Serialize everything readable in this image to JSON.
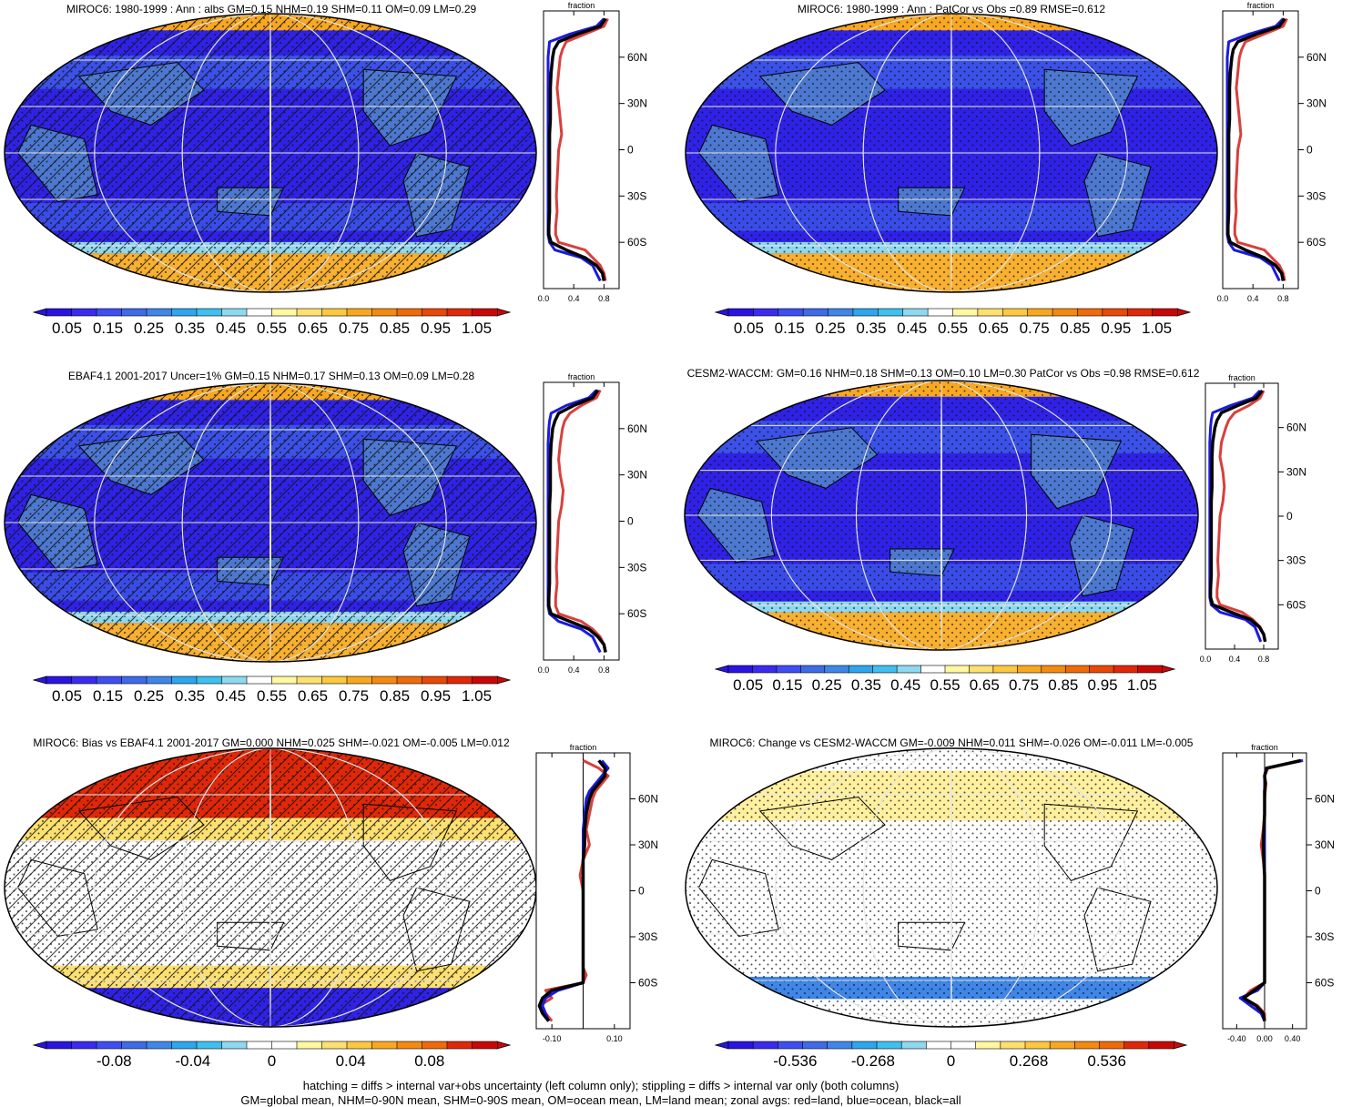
{
  "footer": {
    "line1": "hatching = diffs > internal var+obs uncertainty (left column only); stippling = diffs > internal var only (both columns)",
    "line2": "GM=global mean, NHM=0-90N mean, SHM=0-90S mean, OM=ocean mean, LM=land mean; zonal avgs: red=land, blue=ocean, black=all"
  },
  "colors": {
    "abs_scale": [
      "#2a14e0",
      "#3b2bee",
      "#3f4ef0",
      "#3f6ae8",
      "#3f86e8",
      "#2ea6ee",
      "#3fc0ee",
      "#8ed8f0",
      "#ffffff",
      "#fff8a0",
      "#fde070",
      "#fcc840",
      "#f8a820",
      "#f48a10",
      "#f06a0a",
      "#e84808",
      "#e02808",
      "#c80808"
    ],
    "diff_scale": [
      "#2a14e0",
      "#3b2bee",
      "#3f4ef0",
      "#3f6ae8",
      "#3f86e8",
      "#2ea6ee",
      "#3fc0ee",
      "#8ed8f0",
      "#ffffff",
      "#ffffff",
      "#fff8a0",
      "#fde070",
      "#fcc840",
      "#f8a820",
      "#f48a10",
      "#f06a0a",
      "#e02808",
      "#c80808"
    ],
    "land": "#d8403c",
    "ocean": "#1a1ae0",
    "all": "#000000"
  },
  "panels": [
    {
      "id": "miroc6-mean",
      "title": "MIROC6: 1980-1999 : Ann : albs GM=0.15 NHM=0.19 SHM=0.11 OM=0.09 LM=0.29",
      "kind": "abs",
      "hatched": true,
      "colorbar_labels": [
        "0.05",
        "0.15",
        "0.25",
        "0.35",
        "0.45",
        "0.55",
        "0.65",
        "0.75",
        "0.85",
        "0.95",
        "1.05"
      ],
      "zonal_xticks": [
        "0.0",
        "0.4",
        "0.8"
      ],
      "zonal_ylabels": [
        "60N",
        "30N",
        "0",
        "30S",
        "60S"
      ],
      "zonal_xlabel": "fraction"
    },
    {
      "id": "miroc6-patcor",
      "title": "MIROC6: 1980-1999 : Ann : PatCor vs Obs =0.89 RMSE=0.612",
      "kind": "abs",
      "hatched": false,
      "colorbar_labels": [
        "0.05",
        "0.15",
        "0.25",
        "0.35",
        "0.45",
        "0.55",
        "0.65",
        "0.75",
        "0.85",
        "0.95",
        "1.05"
      ],
      "zonal_xticks": [
        "0.0",
        "0.4",
        "0.8"
      ],
      "zonal_ylabels": [
        "60N",
        "30N",
        "0",
        "30S",
        "60S"
      ],
      "zonal_xlabel": "fraction"
    },
    {
      "id": "ebaf-obs",
      "title": "EBAF4.1 2001-2017 Uncer=1% GM=0.15 NHM=0.17 SHM=0.13 OM=0.09 LM=0.28",
      "kind": "abs",
      "hatched": true,
      "colorbar_labels": [
        "0.05",
        "0.15",
        "0.25",
        "0.35",
        "0.45",
        "0.55",
        "0.65",
        "0.75",
        "0.85",
        "0.95",
        "1.05"
      ],
      "zonal_xticks": [
        "0.0",
        "0.4",
        "0.8"
      ],
      "zonal_ylabels": [
        "60N",
        "30N",
        "0",
        "30S",
        "60S"
      ],
      "zonal_xlabel": "fraction"
    },
    {
      "id": "cesm2-waccm",
      "title": "CESM2-WACCM: GM=0.16 NHM=0.18 SHM=0.13 OM=0.10 LM=0.30 PatCor vs Obs =0.98 RMSE=0.612",
      "kind": "abs",
      "hatched": false,
      "colorbar_labels": [
        "0.05",
        "0.15",
        "0.25",
        "0.35",
        "0.45",
        "0.55",
        "0.65",
        "0.75",
        "0.85",
        "0.95",
        "1.05"
      ],
      "zonal_xticks": [
        "0.0",
        "0.4",
        "0.8"
      ],
      "zonal_ylabels": [
        "60N",
        "30N",
        "0",
        "30S",
        "60S"
      ],
      "zonal_xlabel": "fraction"
    },
    {
      "id": "miroc6-bias",
      "title": "MIROC6: Bias vs EBAF4.1 2001-2017 GM=0.000 NHM=0.025 SHM=-0.021 OM=-0.005 LM=0.012",
      "kind": "diff",
      "hatched": true,
      "colorbar_labels": [
        "-0.08",
        "-0.04",
        "0",
        "0.04",
        "0.08"
      ],
      "zonal_xticks": [
        "-0.10",
        "0.10"
      ],
      "zonal_ylabels": [
        "60N",
        "30N",
        "0",
        "30S",
        "60S"
      ],
      "zonal_xlabel": "fraction"
    },
    {
      "id": "miroc6-change",
      "title": "MIROC6: Change vs CESM2-WACCM GM=-0.009 NHM=0.011 SHM=-0.026 OM=-0.011 LM=-0.005",
      "kind": "diff",
      "hatched": false,
      "colorbar_labels": [
        "-0.536",
        "-0.268",
        "0",
        "0.268",
        "0.536"
      ],
      "zonal_xticks": [
        "-0.40",
        "0.00",
        "0.40"
      ],
      "zonal_ylabels": [
        "60N",
        "30N",
        "0",
        "30S",
        "60S"
      ],
      "zonal_xlabel": "fraction"
    }
  ],
  "chart_data": [
    {
      "type": "line",
      "panel": "miroc6-mean",
      "xlabel": "fraction",
      "xlim": [
        0,
        1.0
      ],
      "ylim": [
        -90,
        90
      ],
      "y": [
        85,
        80,
        75,
        70,
        65,
        60,
        50,
        40,
        30,
        20,
        10,
        0,
        -10,
        -20,
        -30,
        -40,
        -50,
        -55,
        -60,
        -65,
        -70,
        -75,
        -80,
        -85
      ],
      "series": [
        {
          "name": "land",
          "values": [
            0.85,
            0.8,
            0.55,
            0.3,
            0.25,
            0.22,
            0.2,
            0.18,
            0.2,
            0.22,
            0.24,
            0.2,
            0.19,
            0.18,
            0.17,
            0.18,
            0.16,
            0.16,
            0.2,
            0.55,
            0.65,
            0.75,
            0.8,
            0.82
          ]
        },
        {
          "name": "ocean",
          "values": [
            0.8,
            0.7,
            0.35,
            0.08,
            0.07,
            0.06,
            0.06,
            0.06,
            0.06,
            0.06,
            0.06,
            0.06,
            0.06,
            0.06,
            0.06,
            0.06,
            0.06,
            0.06,
            0.08,
            0.15,
            0.5,
            0.65,
            0.7,
            0.75
          ]
        },
        {
          "name": "all",
          "values": [
            0.82,
            0.75,
            0.45,
            0.2,
            0.14,
            0.12,
            0.1,
            0.09,
            0.09,
            0.09,
            0.08,
            0.08,
            0.08,
            0.08,
            0.08,
            0.08,
            0.07,
            0.07,
            0.1,
            0.3,
            0.55,
            0.7,
            0.78,
            0.8
          ]
        }
      ]
    },
    {
      "type": "line",
      "panel": "miroc6-patcor",
      "xlabel": "fraction",
      "xlim": [
        0,
        1.0
      ],
      "ylim": [
        -90,
        90
      ],
      "y": [
        85,
        80,
        75,
        70,
        65,
        60,
        50,
        40,
        30,
        20,
        10,
        0,
        -10,
        -20,
        -30,
        -40,
        -50,
        -55,
        -60,
        -65,
        -70,
        -75,
        -80,
        -85
      ],
      "series": [
        {
          "name": "land",
          "values": [
            0.85,
            0.8,
            0.55,
            0.3,
            0.25,
            0.22,
            0.2,
            0.18,
            0.2,
            0.22,
            0.24,
            0.2,
            0.19,
            0.18,
            0.17,
            0.18,
            0.16,
            0.16,
            0.2,
            0.55,
            0.65,
            0.75,
            0.8,
            0.82
          ]
        },
        {
          "name": "ocean",
          "values": [
            0.8,
            0.7,
            0.35,
            0.08,
            0.07,
            0.06,
            0.06,
            0.06,
            0.06,
            0.06,
            0.06,
            0.06,
            0.06,
            0.06,
            0.06,
            0.06,
            0.06,
            0.06,
            0.08,
            0.15,
            0.5,
            0.65,
            0.7,
            0.75
          ]
        },
        {
          "name": "all",
          "values": [
            0.82,
            0.75,
            0.45,
            0.2,
            0.14,
            0.12,
            0.1,
            0.09,
            0.09,
            0.09,
            0.08,
            0.08,
            0.08,
            0.08,
            0.08,
            0.08,
            0.07,
            0.07,
            0.1,
            0.3,
            0.55,
            0.7,
            0.78,
            0.8
          ]
        }
      ]
    },
    {
      "type": "line",
      "panel": "ebaf-obs",
      "xlabel": "fraction",
      "xlim": [
        0,
        1.0
      ],
      "ylim": [
        -90,
        90
      ],
      "y": [
        85,
        80,
        75,
        70,
        65,
        60,
        50,
        40,
        30,
        20,
        10,
        0,
        -10,
        -20,
        -30,
        -40,
        -50,
        -55,
        -60,
        -65,
        -70,
        -75,
        -80,
        -85
      ],
      "series": [
        {
          "name": "land",
          "values": [
            0.75,
            0.7,
            0.5,
            0.35,
            0.28,
            0.25,
            0.22,
            0.2,
            0.22,
            0.26,
            0.24,
            0.2,
            0.19,
            0.18,
            0.17,
            0.18,
            0.16,
            0.16,
            0.2,
            0.5,
            0.65,
            0.75,
            0.8,
            0.82
          ]
        },
        {
          "name": "ocean",
          "values": [
            0.7,
            0.6,
            0.3,
            0.1,
            0.08,
            0.07,
            0.06,
            0.06,
            0.06,
            0.06,
            0.06,
            0.06,
            0.06,
            0.06,
            0.06,
            0.06,
            0.06,
            0.06,
            0.08,
            0.2,
            0.5,
            0.65,
            0.7,
            0.75
          ]
        },
        {
          "name": "all",
          "values": [
            0.72,
            0.65,
            0.4,
            0.2,
            0.15,
            0.12,
            0.1,
            0.09,
            0.09,
            0.09,
            0.08,
            0.08,
            0.08,
            0.08,
            0.08,
            0.08,
            0.07,
            0.07,
            0.1,
            0.35,
            0.6,
            0.72,
            0.8,
            0.82
          ]
        }
      ]
    },
    {
      "type": "line",
      "panel": "cesm2-waccm",
      "xlabel": "fraction",
      "xlim": [
        0,
        1.0
      ],
      "ylim": [
        -90,
        90
      ],
      "y": [
        85,
        80,
        75,
        70,
        65,
        60,
        50,
        40,
        30,
        20,
        10,
        0,
        -10,
        -20,
        -30,
        -40,
        -50,
        -55,
        -60,
        -65,
        -70,
        -75,
        -80,
        -85
      ],
      "series": [
        {
          "name": "land",
          "values": [
            0.8,
            0.75,
            0.6,
            0.4,
            0.32,
            0.28,
            0.22,
            0.2,
            0.24,
            0.26,
            0.24,
            0.2,
            0.19,
            0.18,
            0.17,
            0.18,
            0.16,
            0.16,
            0.2,
            0.5,
            0.65,
            0.75,
            0.8,
            0.82
          ]
        },
        {
          "name": "ocean",
          "values": [
            0.75,
            0.65,
            0.35,
            0.1,
            0.08,
            0.07,
            0.06,
            0.06,
            0.06,
            0.06,
            0.06,
            0.06,
            0.06,
            0.06,
            0.06,
            0.06,
            0.06,
            0.06,
            0.08,
            0.2,
            0.55,
            0.68,
            0.72,
            0.76
          ]
        },
        {
          "name": "all",
          "values": [
            0.78,
            0.7,
            0.45,
            0.22,
            0.16,
            0.13,
            0.1,
            0.09,
            0.09,
            0.09,
            0.08,
            0.08,
            0.08,
            0.08,
            0.08,
            0.08,
            0.07,
            0.07,
            0.1,
            0.35,
            0.62,
            0.74,
            0.8,
            0.82
          ]
        }
      ]
    },
    {
      "type": "line",
      "panel": "miroc6-bias",
      "xlabel": "fraction",
      "xlim": [
        -0.15,
        0.15
      ],
      "ylim": [
        -90,
        90
      ],
      "y": [
        85,
        80,
        75,
        70,
        65,
        60,
        50,
        40,
        30,
        20,
        10,
        0,
        -10,
        -20,
        -30,
        -40,
        -50,
        -55,
        -60,
        -65,
        -70,
        -75,
        -80,
        -85
      ],
      "series": [
        {
          "name": "land",
          "values": [
            0.0,
            0.05,
            0.08,
            0.06,
            0.04,
            0.03,
            0.02,
            0.01,
            0.02,
            0.0,
            -0.01,
            0.0,
            0.0,
            0.0,
            0.0,
            0.0,
            0.0,
            0.01,
            0.0,
            -0.12,
            -0.1,
            -0.14,
            -0.12,
            -0.1
          ]
        },
        {
          "name": "ocean",
          "values": [
            0.06,
            0.08,
            0.06,
            0.04,
            0.02,
            0.01,
            0.005,
            0.0,
            0.0,
            0.0,
            0.0,
            0.0,
            0.0,
            0.0,
            0.0,
            0.0,
            0.0,
            0.0,
            0.0,
            -0.08,
            -0.12,
            -0.13,
            -0.12,
            -0.11
          ]
        },
        {
          "name": "all",
          "values": [
            0.05,
            0.07,
            0.07,
            0.05,
            0.03,
            0.02,
            0.01,
            0.005,
            0.005,
            0.0,
            0.0,
            0.0,
            0.0,
            0.0,
            0.0,
            0.0,
            0.0,
            0.0,
            0.0,
            -0.1,
            -0.13,
            -0.14,
            -0.13,
            -0.11
          ]
        }
      ]
    },
    {
      "type": "line",
      "panel": "miroc6-change",
      "xlabel": "fraction",
      "xlim": [
        -0.6,
        0.6
      ],
      "ylim": [
        -90,
        90
      ],
      "y": [
        85,
        80,
        75,
        70,
        65,
        60,
        50,
        40,
        30,
        20,
        10,
        0,
        -10,
        -20,
        -30,
        -40,
        -50,
        -55,
        -60,
        -65,
        -70,
        -75,
        -80,
        -85
      ],
      "series": [
        {
          "name": "land",
          "values": [
            0.5,
            0.05,
            0.0,
            0.02,
            0.01,
            0.0,
            0.0,
            -0.02,
            -0.05,
            -0.02,
            0.0,
            0.0,
            0.0,
            0.0,
            0.0,
            0.0,
            0.0,
            0.0,
            0.0,
            -0.2,
            -0.3,
            -0.1,
            0.0,
            0.0
          ]
        },
        {
          "name": "ocean",
          "values": [
            0.55,
            0.02,
            0.0,
            0.0,
            0.0,
            0.0,
            0.0,
            0.0,
            0.0,
            0.0,
            0.0,
            0.0,
            0.0,
            0.0,
            0.0,
            0.0,
            0.0,
            0.0,
            0.0,
            -0.1,
            -0.35,
            -0.2,
            -0.05,
            0.0
          ]
        },
        {
          "name": "all",
          "values": [
            0.52,
            0.03,
            0.0,
            0.01,
            0.0,
            0.0,
            0.0,
            -0.01,
            -0.02,
            -0.01,
            0.0,
            0.0,
            0.0,
            0.0,
            0.0,
            0.0,
            0.0,
            0.0,
            0.0,
            -0.15,
            -0.3,
            -0.12,
            -0.02,
            0.0
          ]
        }
      ]
    }
  ]
}
